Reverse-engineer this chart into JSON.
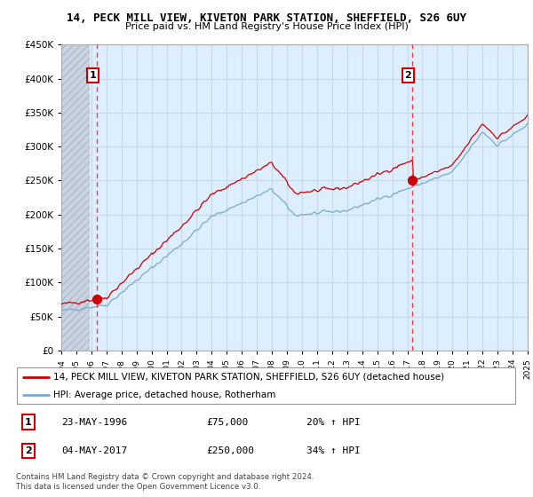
{
  "title": "14, PECK MILL VIEW, KIVETON PARK STATION, SHEFFIELD, S26 6UY",
  "subtitle": "Price paid vs. HM Land Registry's House Price Index (HPI)",
  "legend_line1": "14, PECK MILL VIEW, KIVETON PARK STATION, SHEFFIELD, S26 6UY (detached house)",
  "legend_line2": "HPI: Average price, detached house, Rotherham",
  "annotation1_num": "1",
  "annotation1_date": "23-MAY-1996",
  "annotation1_price": "£75,000",
  "annotation1_hpi": "20% ↑ HPI",
  "annotation2_num": "2",
  "annotation2_date": "04-MAY-2017",
  "annotation2_price": "£250,000",
  "annotation2_hpi": "34% ↑ HPI",
  "footer": "Contains HM Land Registry data © Crown copyright and database right 2024.\nThis data is licensed under the Open Government Licence v3.0.",
  "sale1_year": 1996.38,
  "sale1_price": 75000,
  "sale2_year": 2017.34,
  "sale2_price": 250000,
  "ylim": [
    0,
    450000
  ],
  "xlim": [
    1994,
    2025
  ],
  "property_color": "#cc0000",
  "hpi_color": "#7aaacc",
  "sale_marker_color": "#cc0000",
  "vline_color": "#ee4444",
  "grid_color": "#c8d8e8",
  "plot_bg_color": "#ddeeff",
  "background_color": "#ffffff",
  "hatch_color": "#c8d0dc"
}
